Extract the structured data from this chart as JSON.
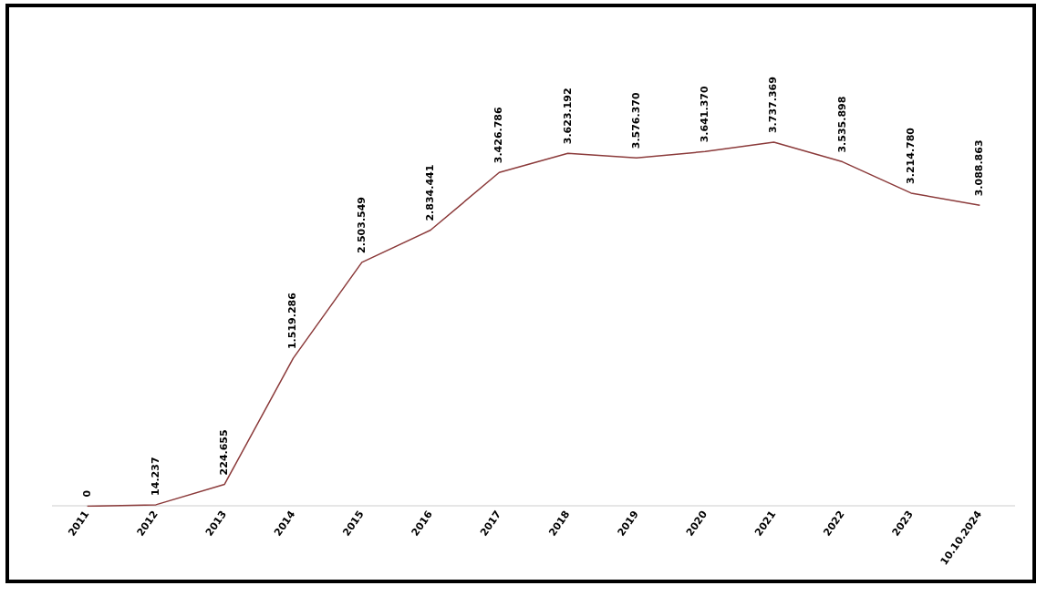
{
  "chart_data": {
    "type": "line",
    "categories": [
      "2011",
      "2012",
      "2013",
      "2014",
      "2015",
      "2016",
      "2017",
      "2018",
      "2019",
      "2020",
      "2021",
      "2022",
      "2023",
      "10.10.2024"
    ],
    "series": [
      {
        "color": "#8b3a3a",
        "values": [
          0,
          14237,
          224655,
          1519286,
          2503549,
          2834441,
          3426786,
          3623192,
          3576370,
          3641370,
          3737369,
          3535898,
          3214780,
          3088863
        ],
        "value_labels": [
          "0",
          "14.237",
          "224.655",
          "1.519.286",
          "2.503.549",
          "2.834.441",
          "3.426.786",
          "3.623.192",
          "3.576.370",
          "3.641.370",
          "3.737.369",
          "3.535.898",
          "3.214.780",
          "3.088.863"
        ]
      }
    ],
    "tick_labels": "x",
    "grid": false,
    "legend": false,
    "marker": "none"
  }
}
